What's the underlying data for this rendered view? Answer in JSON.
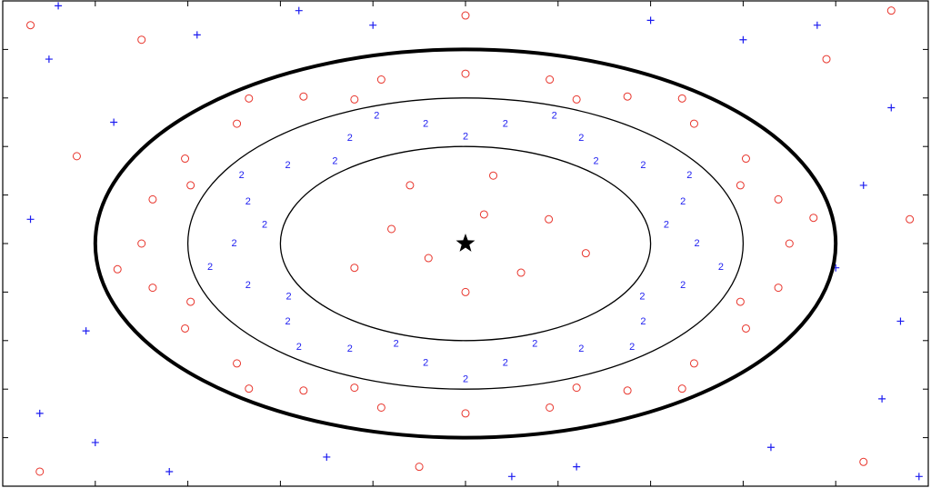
{
  "chart_data": {
    "type": "scatter",
    "xlim": [
      0,
      10
    ],
    "ylim": [
      0,
      10
    ],
    "xticks": [
      0,
      1,
      2,
      3,
      4,
      5,
      6,
      7,
      8,
      9,
      10
    ],
    "yticks": [
      0,
      1,
      2,
      3,
      4,
      5,
      6,
      7,
      8,
      9,
      10
    ],
    "center": [
      5,
      5
    ],
    "contours": [
      2,
      3,
      4
    ],
    "series": [
      {
        "marker": "o",
        "color": "#e8352c",
        "x": [
          5.2,
          4.6,
          5.6,
          4.2,
          5.9,
          5.0,
          4.4,
          6.3,
          5.3,
          3.8,
          8.5,
          8.38,
          8.03,
          7.47,
          6.75,
          5.91,
          5.0,
          4.09,
          3.25,
          2.53,
          1.97,
          1.62,
          1.5,
          1.62,
          1.97,
          2.53,
          3.25,
          4.09,
          5.0,
          5.91,
          6.75,
          7.47,
          8.03,
          8.38,
          7.97,
          6.2,
          3.8,
          2.03,
          2.03,
          3.8,
          6.2,
          7.97,
          7.34,
          2.66,
          2.66,
          7.34,
          8.76,
          1.24,
          0.3,
          1.5,
          9.6,
          9.3,
          0.4,
          0.8,
          9.8,
          5.0,
          4.5,
          8.9
        ],
        "y": [
          5.6,
          4.7,
          4.4,
          5.3,
          5.5,
          4.0,
          6.2,
          4.8,
          6.4,
          4.5,
          5.0,
          5.91,
          6.75,
          7.47,
          8.03,
          8.38,
          8.5,
          8.38,
          8.03,
          7.47,
          6.75,
          5.91,
          5.0,
          4.09,
          3.25,
          2.53,
          1.97,
          1.62,
          1.5,
          1.62,
          1.97,
          2.53,
          3.25,
          4.09,
          6.2,
          7.97,
          7.97,
          6.2,
          3.8,
          2.03,
          2.03,
          3.8,
          7.99,
          7.99,
          2.01,
          2.01,
          5.53,
          4.47,
          9.5,
          9.2,
          9.8,
          0.5,
          0.3,
          6.8,
          5.5,
          9.7,
          0.4,
          8.8
        ]
      },
      {
        "marker": "+",
        "color": "#1c1cf0",
        "x": [
          0.5,
          1.2,
          0.3,
          0.9,
          0.4,
          1.8,
          3.5,
          6.2,
          8.3,
          9.5,
          9.7,
          9.3,
          9.6,
          8.8,
          7.0,
          3.2,
          2.1,
          0.6,
          9.9,
          1.0,
          8.0,
          4.0,
          5.5,
          9.0
        ],
        "y": [
          8.8,
          7.5,
          5.5,
          3.2,
          1.5,
          0.3,
          0.6,
          0.4,
          0.8,
          1.8,
          3.4,
          6.2,
          7.8,
          9.5,
          9.6,
          9.8,
          9.3,
          9.9,
          0.2,
          0.9,
          9.2,
          9.5,
          0.2,
          4.5
        ]
      },
      {
        "marker": "2",
        "color": "#1c1cf0",
        "x": [
          7.5,
          7.35,
          6.92,
          6.25,
          5.43,
          4.57,
          3.75,
          3.08,
          2.65,
          2.5,
          2.65,
          3.08,
          3.75,
          4.57,
          5.43,
          6.25,
          6.92,
          7.35,
          7.17,
          6.41,
          5.0,
          3.59,
          2.83,
          3.09,
          4.25,
          5.75,
          6.91,
          7.42,
          5.96,
          4.04,
          2.58,
          2.24,
          3.2,
          5.0,
          6.8,
          7.76
        ],
        "y": [
          5.0,
          5.86,
          6.61,
          7.17,
          7.46,
          7.46,
          7.17,
          6.61,
          5.86,
          5.0,
          4.14,
          3.39,
          2.83,
          2.54,
          2.54,
          2.83,
          3.39,
          4.14,
          5.38,
          6.69,
          7.2,
          6.69,
          5.38,
          3.9,
          2.93,
          2.93,
          3.9,
          6.4,
          7.63,
          7.63,
          6.4,
          4.51,
          2.86,
          2.2,
          2.86,
          4.51
        ]
      }
    ]
  }
}
